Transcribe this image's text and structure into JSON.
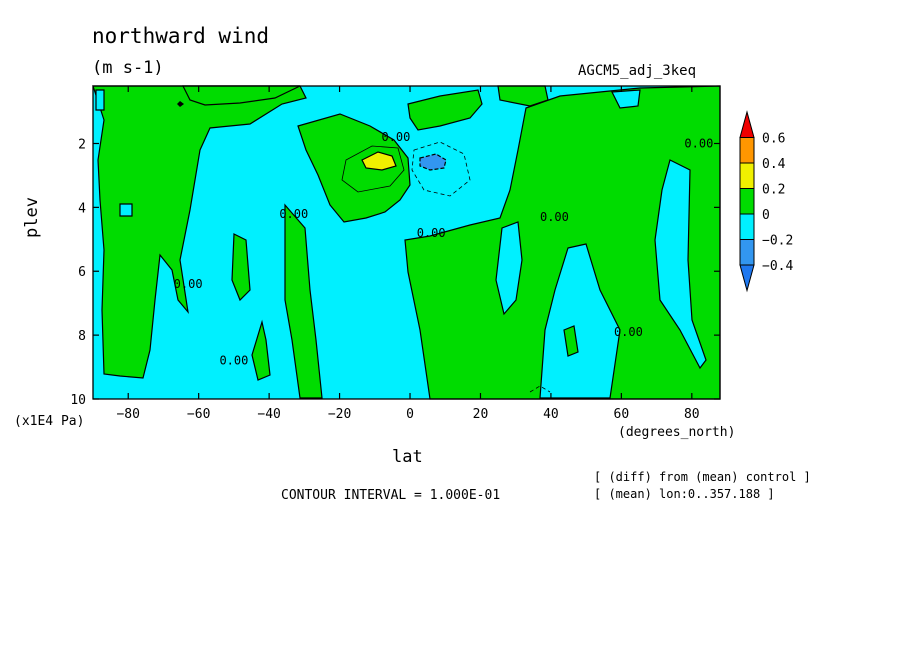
{
  "header": {
    "title": "northward wind",
    "units": "(m s-1)",
    "dataset": "AGCM5_adj_3keq"
  },
  "footer": {
    "contour_interval": "CONTOUR INTERVAL = 1.000E-01",
    "note_line1": "[ (diff) from (mean) control ]",
    "note_line2": "[ (mean) lon:0..357.188 ]"
  },
  "chart_data": {
    "type": "heatmap",
    "title": "northward wind",
    "xlabel": "lat",
    "xunits": "(degrees_north)",
    "ylabel": "plev",
    "yunits": "(x1E4 Pa)",
    "xlim": [
      -90,
      88
    ],
    "ylim": [
      10,
      0.2
    ],
    "xticks": [
      -80,
      -60,
      -40,
      -20,
      0,
      20,
      40,
      60,
      80
    ],
    "yticks": [
      2,
      4,
      6,
      8,
      10
    ],
    "legend": {
      "position": "right",
      "levels": [
        "-0.4",
        "-0.2",
        "0",
        "0.2",
        "0.4",
        "0.6"
      ],
      "bands": [
        {
          "range": "< -0.4",
          "color": "#1e78f0"
        },
        {
          "range": "-0.4 to -0.2",
          "color": "#3296f0"
        },
        {
          "range": "-0.2 to 0",
          "color": "#00f0ff"
        },
        {
          "range": "0 to 0.2",
          "color": "#00dc00"
        },
        {
          "range": "0.2 to 0.4",
          "color": "#f0f000"
        },
        {
          "range": "0.4 to 0.6",
          "color": "#ff9600"
        },
        {
          "range": "> 0.6",
          "color": "#f00000"
        }
      ]
    },
    "contour_labels": [
      {
        "text": "0.00",
        "lat": -4,
        "plev": 1.8
      },
      {
        "text": "0.00",
        "lat": 82,
        "plev": 2.0
      },
      {
        "text": "0.00",
        "lat": -33,
        "plev": 4.2
      },
      {
        "text": "0.00",
        "lat": 41,
        "plev": 4.3
      },
      {
        "text": "0.00",
        "lat": 6,
        "plev": 4.8
      },
      {
        "text": "0.00",
        "lat": -63,
        "plev": 6.4
      },
      {
        "text": "0.00",
        "lat": 62,
        "plev": 7.9
      },
      {
        "text": "0.00",
        "lat": -50,
        "plev": 8.8
      }
    ],
    "features": [
      {
        "sign": "positive",
        "value_range": "0.2 to 0.4",
        "lat_center": -8,
        "plev_center": 2.5
      },
      {
        "sign": "negative",
        "value_range": "-0.4 to -0.2",
        "lat_center": 8,
        "plev_center": 2.5
      }
    ]
  }
}
